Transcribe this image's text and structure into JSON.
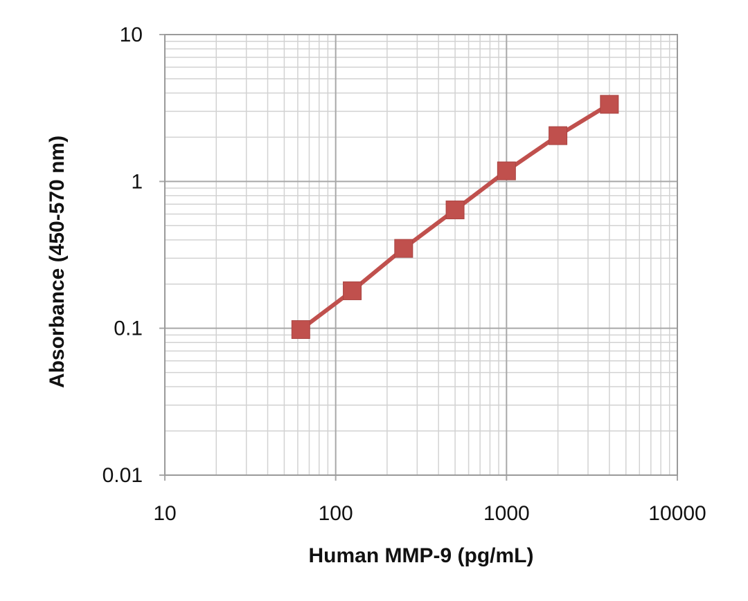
{
  "chart_data": {
    "type": "line",
    "xlabel": "Human MMP-9 (pg/mL)",
    "ylabel": "Absorbance (450-570 nm)",
    "xscale": "log",
    "yscale": "log",
    "xlim": [
      10,
      10000
    ],
    "ylim": [
      0.01,
      10
    ],
    "grid": true,
    "legend": "none",
    "x_ticks": [
      "10",
      "100",
      "1000",
      "10000"
    ],
    "y_ticks": [
      "0.01",
      "0.1",
      "1",
      "10"
    ],
    "series": [
      {
        "color": "#c0504d",
        "marker": "square",
        "x": [
          62.5,
          125,
          250,
          500,
          1000,
          2000,
          4000
        ],
        "y": [
          0.098,
          0.18,
          0.35,
          0.64,
          1.18,
          2.05,
          3.35
        ]
      }
    ]
  }
}
